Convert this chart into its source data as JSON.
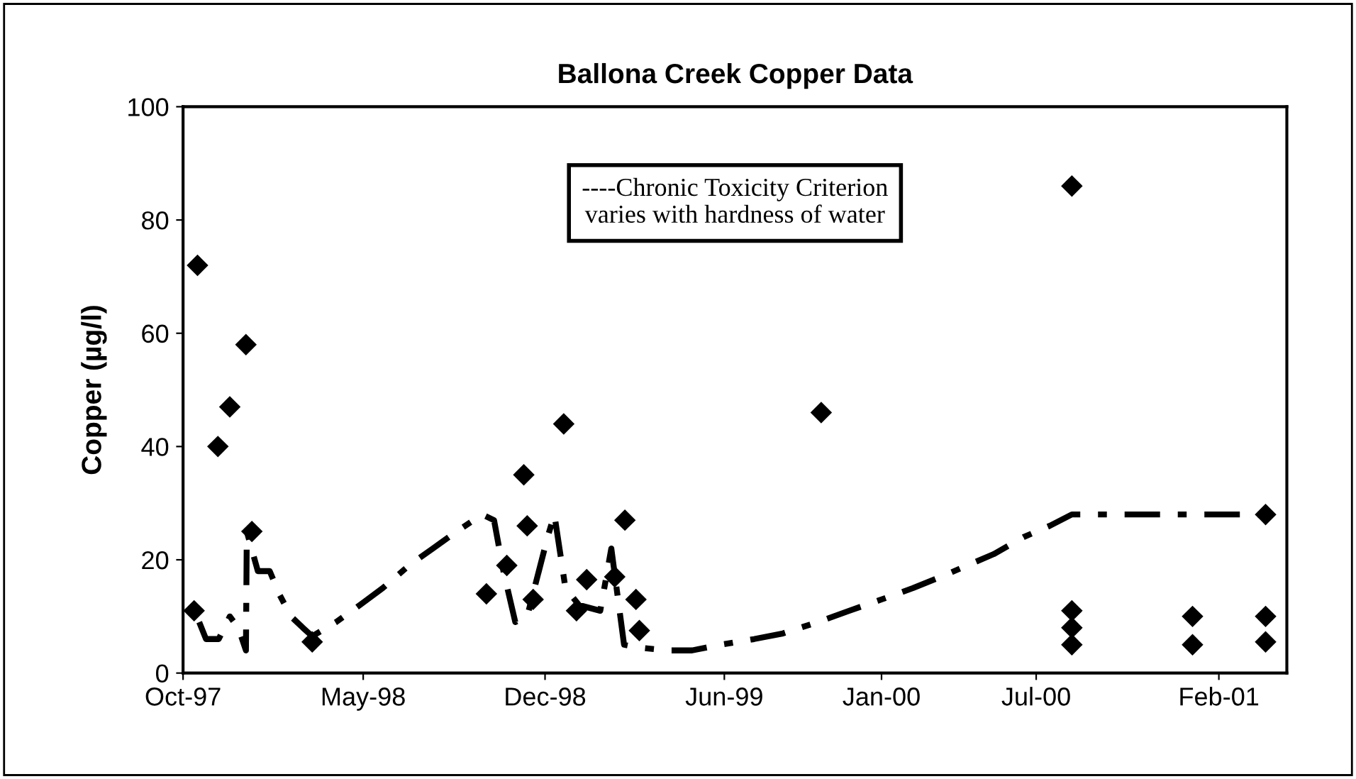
{
  "chart_data": {
    "type": "scatter",
    "title": "Ballona Creek Copper Data",
    "ylabel": "Copper (µg/l)",
    "annotations": [
      "----Chronic Toxicity Criterion\nvaries with hardness of water"
    ],
    "xlim": [
      "1997-10-01",
      "2001-04-22"
    ],
    "xticks": [
      {
        "value": "1997-10-01",
        "label": "Oct-97"
      },
      {
        "value": "1998-05-01",
        "label": "May-98"
      },
      {
        "value": "1998-12-01",
        "label": "Dec-98"
      },
      {
        "value": "1999-06-30",
        "label": "Jun-99"
      },
      {
        "value": "2000-01-01",
        "label": "Jan-00"
      },
      {
        "value": "2000-07-01",
        "label": "Jul-00"
      },
      {
        "value": "2001-02-01",
        "label": "Feb-01"
      }
    ],
    "ylim": [
      0,
      100
    ],
    "yticks": [
      0,
      20,
      40,
      60,
      80,
      100
    ],
    "grid": false,
    "legend": false,
    "series": [
      {
        "type": "line",
        "color": "#000000",
        "line_style": "dashed",
        "marker": "none",
        "x": [
          "1997-10-20",
          "1997-10-28",
          "1997-11-12",
          "1997-11-25",
          "1997-12-05",
          "1997-12-14",
          "1997-12-15",
          "1997-12-28",
          "1998-01-11",
          "1998-01-22",
          "1998-02-05",
          "1998-02-19",
          "1998-03-02",
          "1998-03-30",
          "1998-04-27",
          "1998-05-24",
          "1998-06-24",
          "1998-07-22",
          "1998-08-19",
          "1998-09-18",
          "1998-10-02",
          "1998-10-13",
          "1998-10-27",
          "1998-11-10",
          "1998-12-04",
          "1998-12-12",
          "1998-12-25",
          "1999-01-10",
          "1999-02-04",
          "1999-02-17",
          "1999-03-04",
          "1999-03-21",
          "1999-04-23",
          "1999-05-23",
          "1999-06-26",
          "1999-08-04",
          "1999-09-07",
          "1999-10-18",
          "1999-11-24",
          "2000-01-01",
          "2000-02-07",
          "2000-03-11",
          "2000-04-11",
          "2000-05-12",
          "2000-06-16",
          "2000-07-17",
          "2000-08-12",
          "2001-03-28"
        ],
        "values": [
          9,
          6,
          6,
          10,
          8,
          4,
          25,
          18,
          18,
          14,
          10,
          8,
          6.5,
          9,
          12,
          15,
          19,
          22,
          25,
          28,
          27,
          18,
          9,
          10,
          24,
          28,
          15,
          12,
          11,
          22,
          5,
          4.5,
          4,
          4,
          5,
          6,
          7,
          9,
          11,
          13,
          15,
          17,
          19,
          21,
          24,
          26,
          28,
          28
        ]
      },
      {
        "color": "#000000",
        "marker": "diamond",
        "x": [
          "1997-10-14",
          "1997-10-18",
          "1997-11-11",
          "1997-11-25",
          "1997-12-14",
          "1997-12-21",
          "1998-03-02",
          "1998-09-23",
          "1998-10-17",
          "1998-11-06",
          "1998-11-10",
          "1998-11-17",
          "1998-12-23",
          "1999-01-07",
          "1999-01-19",
          "1999-02-21",
          "1999-03-05",
          "1999-03-18",
          "1999-03-22",
          "1999-10-22",
          "2000-08-12",
          "2000-08-12",
          "2000-08-12",
          "2000-08-12",
          "2001-01-01",
          "2001-01-01",
          "2001-03-28",
          "2001-03-28",
          "2001-03-28"
        ],
        "values": [
          11,
          72,
          40,
          47,
          58,
          25,
          5.5,
          14,
          19,
          35,
          26,
          13,
          44,
          11,
          16.5,
          17,
          27,
          13,
          7.5,
          46,
          86,
          11,
          8,
          5,
          10,
          5,
          28,
          10,
          5.5
        ]
      }
    ]
  }
}
